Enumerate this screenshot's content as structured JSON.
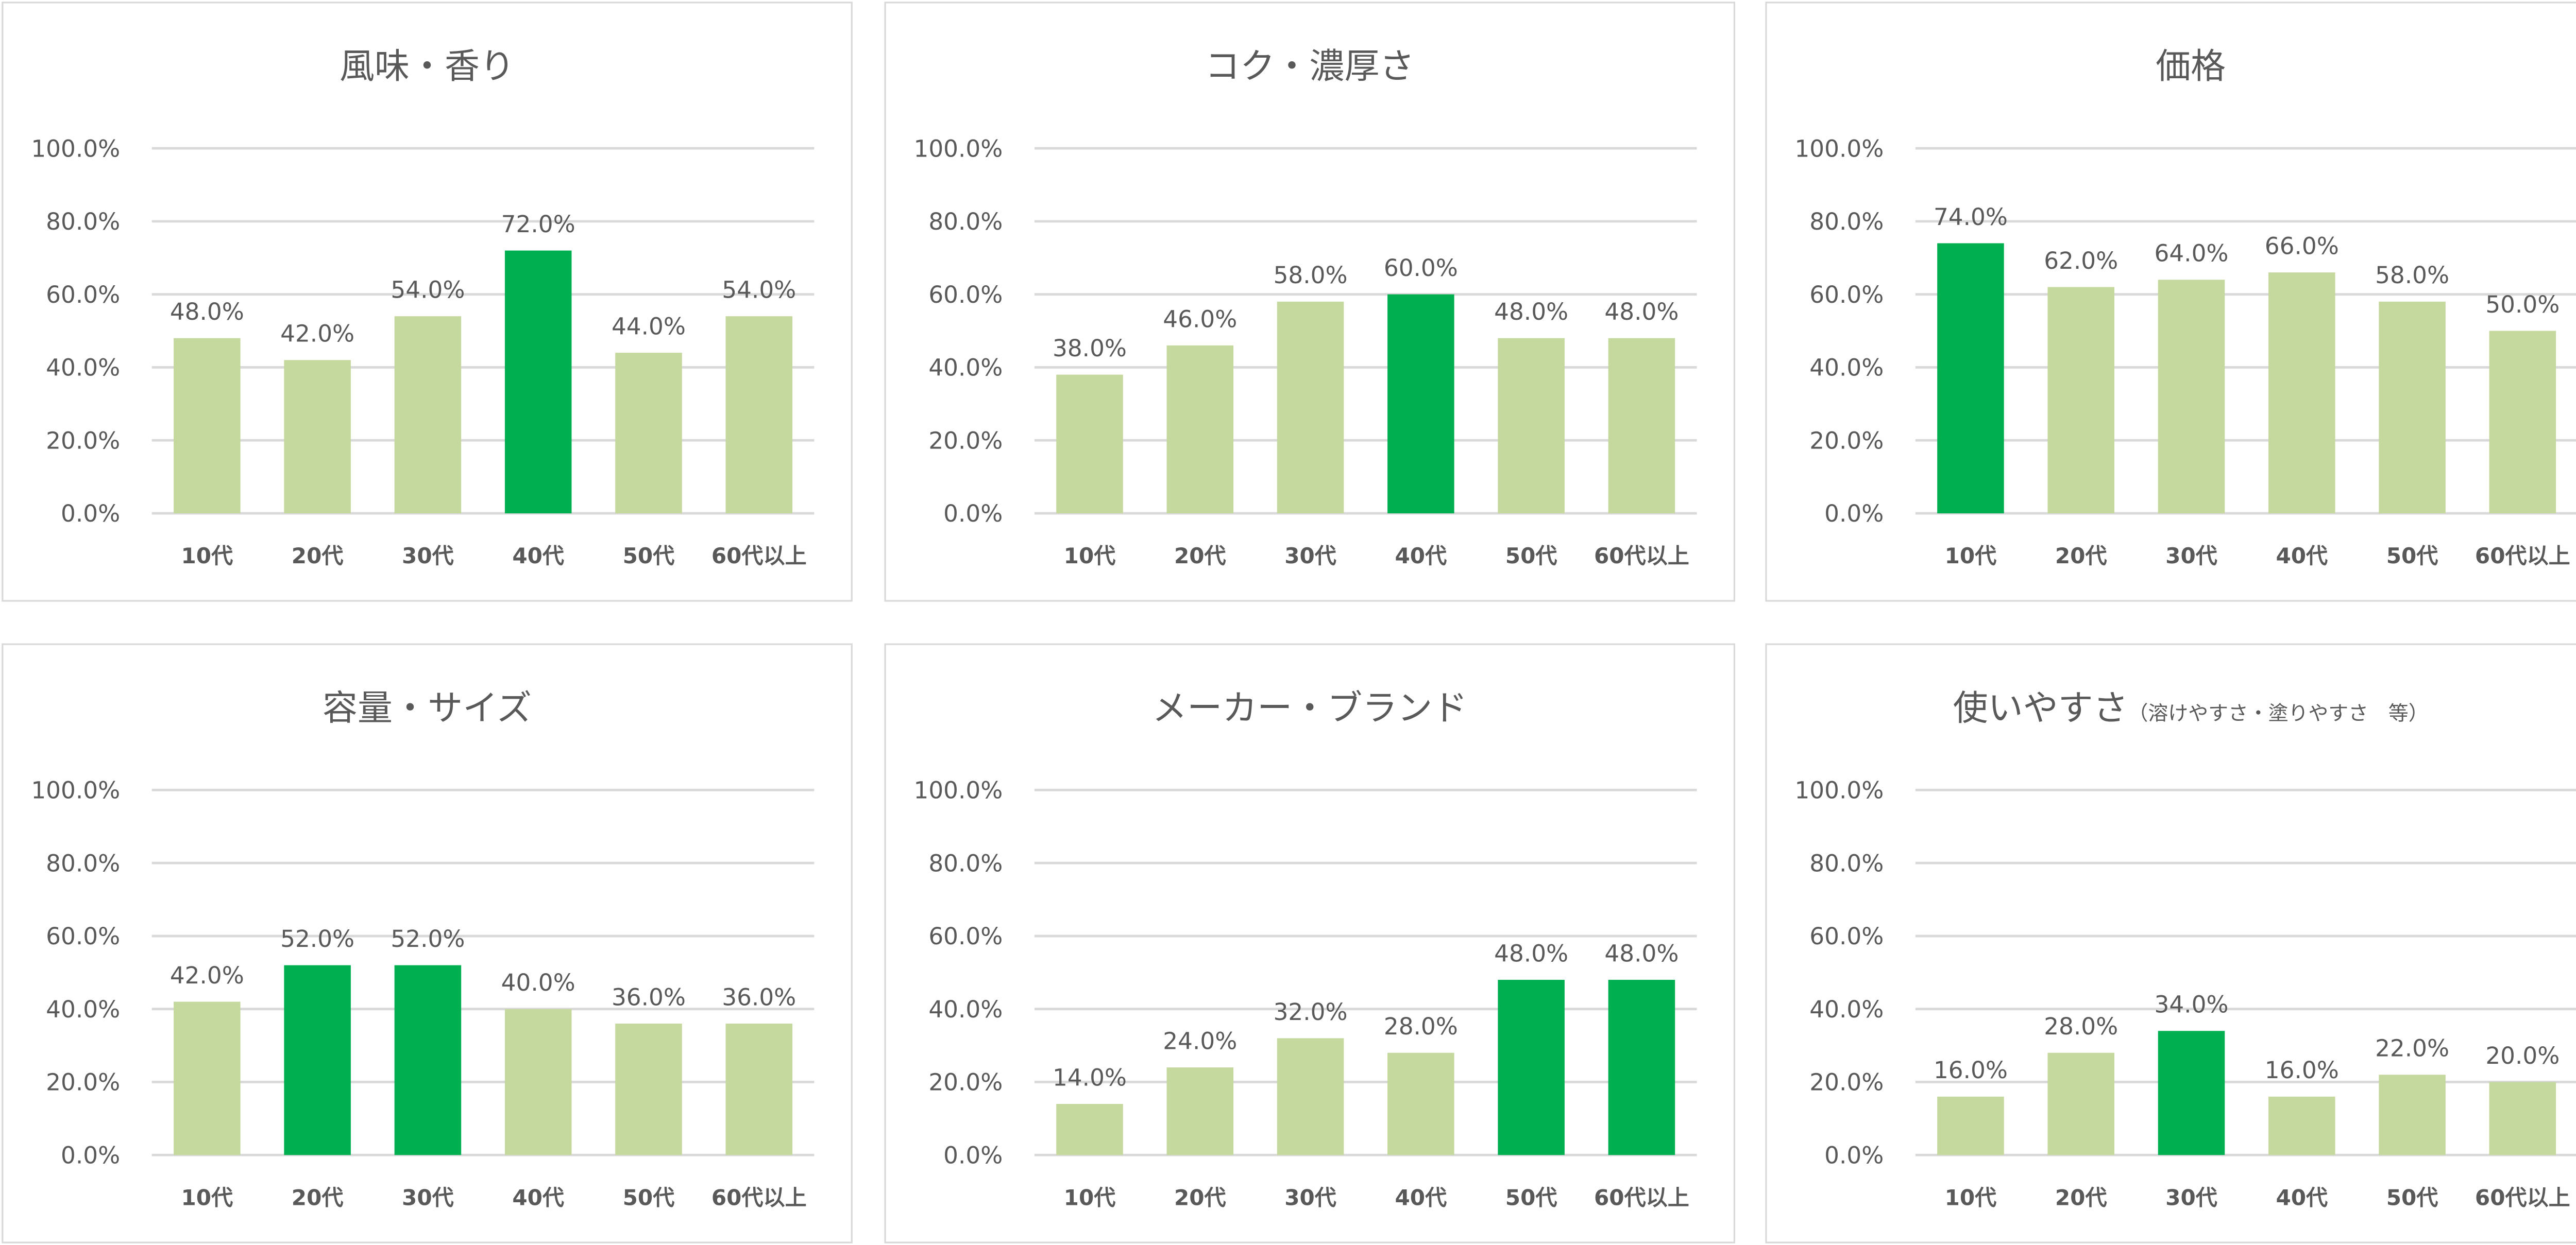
{
  "colors": {
    "normal": "#c5d89d",
    "highlight": "#00b050",
    "grid": "#d9d9d9",
    "text": "#595959"
  },
  "chart_data": [
    {
      "type": "bar",
      "title": "風味・香り",
      "subtitle": "",
      "categories": [
        "10代",
        "20代",
        "30代",
        "40代",
        "50代",
        "60代以上"
      ],
      "values": [
        48.0,
        42.0,
        54.0,
        72.0,
        44.0,
        54.0
      ],
      "highlight": [
        "40代"
      ],
      "ylim": [
        0,
        100
      ],
      "yticks": [
        "0.0%",
        "20.0%",
        "40.0%",
        "60.0%",
        "80.0%",
        "100.0%"
      ],
      "grid": true
    },
    {
      "type": "bar",
      "title": "コク・濃厚さ",
      "subtitle": "",
      "categories": [
        "10代",
        "20代",
        "30代",
        "40代",
        "50代",
        "60代以上"
      ],
      "values": [
        38.0,
        46.0,
        58.0,
        60.0,
        48.0,
        48.0
      ],
      "highlight": [
        "40代"
      ],
      "ylim": [
        0,
        100
      ],
      "yticks": [
        "0.0%",
        "20.0%",
        "40.0%",
        "60.0%",
        "80.0%",
        "100.0%"
      ],
      "grid": true
    },
    {
      "type": "bar",
      "title": "価格",
      "subtitle": "",
      "categories": [
        "10代",
        "20代",
        "30代",
        "40代",
        "50代",
        "60代以上"
      ],
      "values": [
        74.0,
        62.0,
        64.0,
        66.0,
        58.0,
        50.0
      ],
      "highlight": [
        "10代"
      ],
      "ylim": [
        0,
        100
      ],
      "yticks": [
        "0.0%",
        "20.0%",
        "40.0%",
        "60.0%",
        "80.0%",
        "100.0%"
      ],
      "grid": true
    },
    {
      "type": "bar",
      "title": "容量・サイズ",
      "subtitle": "",
      "categories": [
        "10代",
        "20代",
        "30代",
        "40代",
        "50代",
        "60代以上"
      ],
      "values": [
        42.0,
        52.0,
        52.0,
        40.0,
        36.0,
        36.0
      ],
      "highlight": [
        "20代",
        "30代"
      ],
      "ylim": [
        0,
        100
      ],
      "yticks": [
        "0.0%",
        "20.0%",
        "40.0%",
        "60.0%",
        "80.0%",
        "100.0%"
      ],
      "grid": true
    },
    {
      "type": "bar",
      "title": "メーカー・ブランド",
      "subtitle": "",
      "categories": [
        "10代",
        "20代",
        "30代",
        "40代",
        "50代",
        "60代以上"
      ],
      "values": [
        14.0,
        24.0,
        32.0,
        28.0,
        48.0,
        48.0
      ],
      "highlight": [
        "50代",
        "60代以上"
      ],
      "ylim": [
        0,
        100
      ],
      "yticks": [
        "0.0%",
        "20.0%",
        "40.0%",
        "60.0%",
        "80.0%",
        "100.0%"
      ],
      "grid": true
    },
    {
      "type": "bar",
      "title": "使いやすさ",
      "subtitle": "（溶けやすさ・塗りやすさ　等）",
      "categories": [
        "10代",
        "20代",
        "30代",
        "40代",
        "50代",
        "60代以上"
      ],
      "values": [
        16.0,
        28.0,
        34.0,
        16.0,
        22.0,
        20.0
      ],
      "highlight": [
        "30代"
      ],
      "ylim": [
        0,
        100
      ],
      "yticks": [
        "0.0%",
        "20.0%",
        "40.0%",
        "60.0%",
        "80.0%",
        "100.0%"
      ],
      "grid": true
    }
  ]
}
